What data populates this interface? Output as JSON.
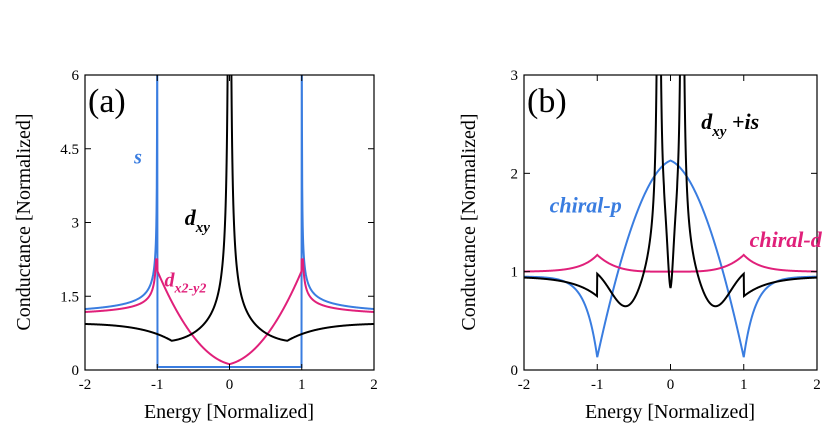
{
  "chart_data": [
    {
      "type": "line",
      "panel_label": "(a)",
      "xlabel": "Energy [Normalized]",
      "ylabel": "Conductance  [Normalized]",
      "xlim": [
        -2,
        2
      ],
      "ylim": [
        0,
        6
      ],
      "xticks": [
        -2,
        -1,
        0,
        1,
        2
      ],
      "yticks": [
        0,
        1.5,
        3,
        4.5,
        6
      ],
      "ytick_labels": [
        "0",
        "1.5",
        "3",
        "4.5",
        "6"
      ],
      "series": [
        {
          "id": "s",
          "name": "s",
          "color": "#3a7de0",
          "annotation": {
            "text": "s",
            "at": [
              -1.32,
              4.2
            ]
          }
        },
        {
          "id": "dx2y2",
          "name": "d",
          "sub": "x2-y2",
          "color": "#e0207a",
          "annotation": {
            "text": "d",
            "sub": "x2-y2",
            "at": [
              -0.9,
              1.7
            ]
          }
        },
        {
          "id": "dxy",
          "name": "d",
          "sub": "xy",
          "color": "#000000",
          "annotation": {
            "text": "d",
            "sub": "xy",
            "at": [
              -0.62,
              2.95
            ]
          }
        }
      ]
    },
    {
      "type": "line",
      "panel_label": "(b)",
      "xlabel": "Energy [Normalized]",
      "ylabel": "Conductance [Normalized]",
      "xlim": [
        -2,
        2
      ],
      "ylim": [
        0,
        3
      ],
      "xticks": [
        -2,
        -1,
        0,
        1,
        2
      ],
      "yticks": [
        0,
        1,
        2,
        3
      ],
      "ytick_labels": [
        "0",
        "1",
        "2",
        "3"
      ],
      "series": [
        {
          "id": "chiral-p",
          "name": "chiral-p",
          "color": "#3a7de0",
          "annotation": {
            "text": "chiral-p",
            "at": [
              -1.65,
              1.6
            ]
          }
        },
        {
          "id": "chiral-d",
          "name": "chiral-d",
          "color": "#e0207a",
          "annotation": {
            "text": "chiral-d",
            "at": [
              1.08,
              1.25
            ]
          }
        },
        {
          "id": "dxy+is",
          "name": "d",
          "sub": "xy",
          "suffix": " +is",
          "color": "#000000",
          "annotation": {
            "text": "d",
            "sub": "xy",
            "suffix": " +is",
            "at": [
              0.42,
              2.45
            ]
          }
        }
      ]
    }
  ]
}
